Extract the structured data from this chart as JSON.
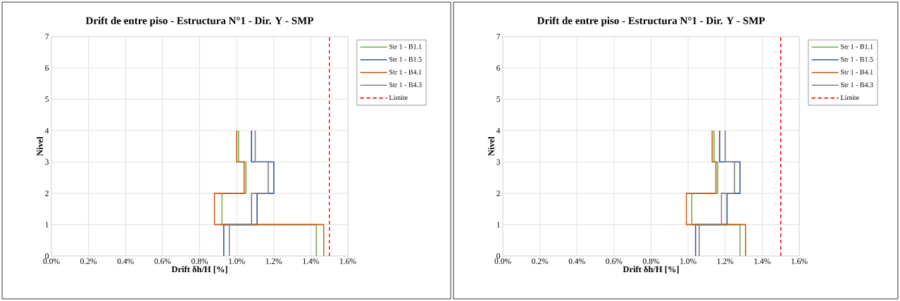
{
  "chart_data": [
    {
      "type": "line",
      "title": "Drift de entre piso - Estructura N°1 - Dir. Y - SMP",
      "xlabel": "Drift δh/H [%]",
      "ylabel": "Nivel",
      "xlim": [
        0,
        1.6
      ],
      "ylim": [
        0,
        7
      ],
      "xticks": [
        {
          "value": 0,
          "label": "0.0%"
        },
        {
          "value": 0.2,
          "label": "0.2%"
        },
        {
          "value": 0.4,
          "label": "0.4%"
        },
        {
          "value": 0.6,
          "label": "0.6%"
        },
        {
          "value": 0.8,
          "label": "0.8%"
        },
        {
          "value": 1.0,
          "label": "1.0%"
        },
        {
          "value": 1.2,
          "label": "1.2%"
        },
        {
          "value": 1.4,
          "label": "1.4%"
        },
        {
          "value": 1.6,
          "label": "1.6%"
        }
      ],
      "yticks": [
        0,
        1,
        2,
        3,
        4,
        5,
        6,
        7
      ],
      "grid": true,
      "legend": "right",
      "series": [
        {
          "name": "Str 1 - B1.1",
          "color": "#70ad47",
          "x": [
            1.43,
            1.43,
            0.92,
            0.92,
            1.05,
            1.05,
            1.01,
            1.01
          ],
          "values": [
            0,
            1,
            1,
            2,
            2,
            3,
            3,
            4
          ]
        },
        {
          "name": "Str 1 - B1.5",
          "color": "#2f5597",
          "x": [
            0.93,
            0.93,
            1.11,
            1.11,
            1.2,
            1.2,
            1.08,
            1.08
          ],
          "values": [
            0,
            1,
            1,
            2,
            2,
            3,
            3,
            4
          ]
        },
        {
          "name": "Str 1 - B4.1",
          "color": "#c55a11",
          "x": [
            1.47,
            1.47,
            0.88,
            0.88,
            1.04,
            1.04,
            1.0,
            1.0
          ],
          "values": [
            0,
            1,
            1,
            2,
            2,
            3,
            3,
            4
          ]
        },
        {
          "name": "Str 1 - B4.3",
          "color": "#7f7f7f",
          "x": [
            0.96,
            0.96,
            1.08,
            1.08,
            1.17,
            1.17,
            1.1,
            1.1
          ],
          "values": [
            0,
            1,
            1,
            2,
            2,
            3,
            3,
            4
          ]
        },
        {
          "name": "Limite",
          "color": "#ff0000",
          "line_style": "dashed",
          "x": [
            1.5,
            1.5
          ],
          "values": [
            0,
            7
          ]
        }
      ]
    },
    {
      "type": "line",
      "title": "Drift de entre piso - Estructura N°1 - Dir. Y - SMP",
      "xlabel": "Drift δh/H [%]",
      "ylabel": "Nivel",
      "xlim": [
        0,
        1.6
      ],
      "ylim": [
        0,
        7
      ],
      "xticks": [
        {
          "value": 0,
          "label": "0.0%"
        },
        {
          "value": 0.2,
          "label": "0.2%"
        },
        {
          "value": 0.4,
          "label": "0.4%"
        },
        {
          "value": 0.6,
          "label": "0.6%"
        },
        {
          "value": 0.8,
          "label": "0.8%"
        },
        {
          "value": 1.0,
          "label": "1.0%"
        },
        {
          "value": 1.2,
          "label": "1.2%"
        },
        {
          "value": 1.4,
          "label": "1.4%"
        },
        {
          "value": 1.6,
          "label": "1.6%"
        }
      ],
      "yticks": [
        0,
        1,
        2,
        3,
        4,
        5,
        6,
        7
      ],
      "grid": true,
      "legend": "right",
      "series": [
        {
          "name": "Str 1 - B1.1",
          "color": "#70ad47",
          "x": [
            1.28,
            1.28,
            1.02,
            1.02,
            1.16,
            1.16,
            1.14,
            1.14
          ],
          "values": [
            0,
            1,
            1,
            2,
            2,
            3,
            3,
            4
          ]
        },
        {
          "name": "Str 1 - B1.5",
          "color": "#2f5597",
          "x": [
            1.04,
            1.04,
            1.21,
            1.21,
            1.28,
            1.28,
            1.17,
            1.17
          ],
          "values": [
            0,
            1,
            1,
            2,
            2,
            3,
            3,
            4
          ]
        },
        {
          "name": "Str 1 - B4.1",
          "color": "#c55a11",
          "x": [
            1.31,
            1.31,
            0.99,
            0.99,
            1.15,
            1.15,
            1.13,
            1.13
          ],
          "values": [
            0,
            1,
            1,
            2,
            2,
            3,
            3,
            4
          ]
        },
        {
          "name": "Str 1 - B4.3",
          "color": "#7f7f7f",
          "x": [
            1.06,
            1.06,
            1.18,
            1.18,
            1.25,
            1.25,
            1.2,
            1.2
          ],
          "values": [
            0,
            1,
            1,
            2,
            2,
            3,
            3,
            4
          ]
        },
        {
          "name": "Limite",
          "color": "#ff0000",
          "line_style": "dashed",
          "x": [
            1.5,
            1.5
          ],
          "values": [
            0,
            7
          ]
        }
      ]
    }
  ]
}
